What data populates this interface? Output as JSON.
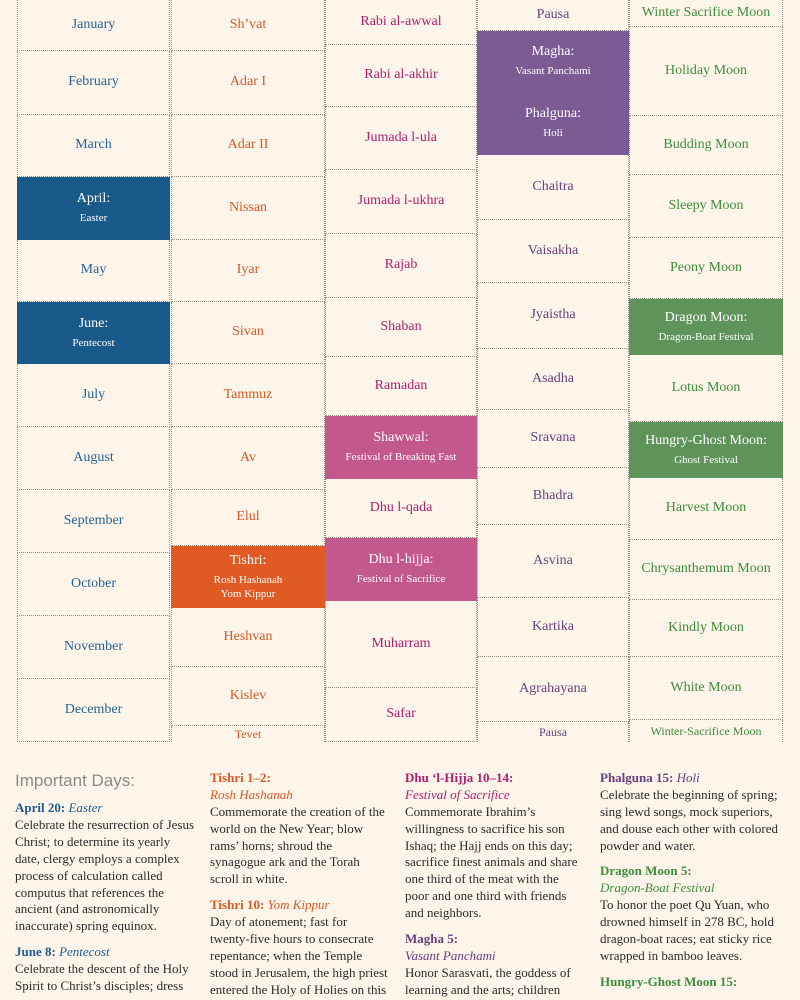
{
  "calendar": {
    "gregorian": {
      "color": "#2a6491",
      "cells": [
        {
          "label": "January",
          "sub": ""
        },
        {
          "label": "February",
          "sub": ""
        },
        {
          "label": "March",
          "sub": ""
        },
        {
          "label": "April:",
          "sub": "Easter",
          "highlight": "#1a5a8a"
        },
        {
          "label": "May",
          "sub": ""
        },
        {
          "label": "June:",
          "sub": "Pentecost",
          "highlight": "#1a5a8a"
        },
        {
          "label": "July",
          "sub": ""
        },
        {
          "label": "August",
          "sub": ""
        },
        {
          "label": "September",
          "sub": ""
        },
        {
          "label": "October",
          "sub": ""
        },
        {
          "label": "November",
          "sub": ""
        },
        {
          "label": "December",
          "sub": ""
        }
      ]
    },
    "hebrew": {
      "color": "#d25a27",
      "cells": [
        {
          "label": "Sh’vat",
          "sub": ""
        },
        {
          "label": "Adar I",
          "sub": ""
        },
        {
          "label": "Adar II",
          "sub": ""
        },
        {
          "label": "Nissan",
          "sub": ""
        },
        {
          "label": "Iyar",
          "sub": ""
        },
        {
          "label": "Sivan",
          "sub": ""
        },
        {
          "label": "Tammuz",
          "sub": ""
        },
        {
          "label": "Av",
          "sub": ""
        },
        {
          "label": "Elul",
          "sub": ""
        },
        {
          "label": "Tishri:",
          "sub": "Rosh Hashanah\nYom Kippur",
          "highlight": "#e05a24"
        },
        {
          "label": "Heshvan",
          "sub": ""
        },
        {
          "label": "Kislev",
          "sub": ""
        },
        {
          "label": "Tevet",
          "sub": ""
        }
      ]
    },
    "islamic": {
      "color": "#ad1f6e",
      "cells": [
        {
          "label": "Rabi al-awwal",
          "sub": ""
        },
        {
          "label": "Rabi al-akhir",
          "sub": ""
        },
        {
          "label": "Jumada l-ula",
          "sub": ""
        },
        {
          "label": "Jumada l-ukhra",
          "sub": ""
        },
        {
          "label": "Rajab",
          "sub": ""
        },
        {
          "label": "Shaban",
          "sub": ""
        },
        {
          "label": "Ramadan",
          "sub": ""
        },
        {
          "label": "Shawwal:",
          "sub": "Festival of Breaking Fast",
          "highlight": "#c3588c"
        },
        {
          "label": "Dhu l-qada",
          "sub": ""
        },
        {
          "label": "Dhu l-hijja:",
          "sub": "Festival of Sacrifice",
          "highlight": "#c3588c"
        },
        {
          "label": "Muharram",
          "sub": ""
        },
        {
          "label": "Safar",
          "sub": ""
        }
      ]
    },
    "hindu": {
      "color": "#6a3f7c",
      "cells": [
        {
          "label": "Pausa",
          "sub": ""
        },
        {
          "label": "Magha:",
          "sub": "Vasant Panchami",
          "highlight": "#7c5a94"
        },
        {
          "label": "Phalguna:",
          "sub": "Holi",
          "highlight": "#7c5a94"
        },
        {
          "label": "Chaitra",
          "sub": ""
        },
        {
          "label": "Vaisakha",
          "sub": ""
        },
        {
          "label": "Jyaistha",
          "sub": ""
        },
        {
          "label": "Asadha",
          "sub": ""
        },
        {
          "label": "Sravana",
          "sub": ""
        },
        {
          "label": "Bhadra",
          "sub": ""
        },
        {
          "label": "Asvina",
          "sub": ""
        },
        {
          "label": "Kartika",
          "sub": ""
        },
        {
          "label": "Agrahayana",
          "sub": ""
        },
        {
          "label": "Pausa",
          "sub": ""
        }
      ]
    },
    "chinese": {
      "color": "#3d8e3a",
      "cells": [
        {
          "label": "Winter Sacrifice Moon",
          "sub": ""
        },
        {
          "label": "Holiday Moon",
          "sub": ""
        },
        {
          "label": "Budding Moon",
          "sub": ""
        },
        {
          "label": "Sleepy Moon",
          "sub": ""
        },
        {
          "label": "Peony Moon",
          "sub": ""
        },
        {
          "label": "Dragon Moon:",
          "sub": "Dragon-Boat Festival",
          "highlight": "#5e9459"
        },
        {
          "label": "Lotus Moon",
          "sub": ""
        },
        {
          "label": "Hungry-Ghost Moon:",
          "sub": "Ghost Festival",
          "highlight": "#5e9459"
        },
        {
          "label": "Harvest Moon",
          "sub": ""
        },
        {
          "label": "Chrysanthemum Moon",
          "sub": ""
        },
        {
          "label": "Kindly Moon",
          "sub": ""
        },
        {
          "label": "White Moon",
          "sub": ""
        },
        {
          "label": "Winter-Sacrifice Moon",
          "sub": ""
        }
      ]
    }
  },
  "important": {
    "title": "Important Days:",
    "columns": [
      [
        {
          "key": "greg",
          "date": "April 20:",
          "name": "Easter",
          "desc": "Celebrate the resurrection of Jesus Christ; to determine its yearly date, clergy employs a complex process of calculation called computus that references the ancient (and astronomically inaccurate) spring equinox."
        },
        {
          "key": "greg",
          "date": "June 8:",
          "name": "Pentecost",
          "desc": "Celebrate the descent of the Holy Spirit to Christ’s disciples; dress"
        }
      ],
      [
        {
          "key": "heb",
          "date": "Tishri 1–2:",
          "name": "Rosh Hashanah",
          "desc": "Commemorate the creation of the world on the New Year; blow rams’ horns; shroud the synagogue ark and the Torah scroll in white."
        },
        {
          "key": "heb",
          "date": "Tishri 10:",
          "name": "Yom Kippur",
          "desc": "Day of atonement; fast for twenty-five hours to consecrate repentance; when the Temple stood in Jerusalem, the high priest entered the Holy of Holies on this day alone."
        }
      ],
      [
        {
          "key": "isl",
          "date": "Dhu ‘l-Hijja 10–14:",
          "name": "Festival of Sacrifice",
          "desc": "Commemorate Ibrahim’s willingness to sacrifice his son Ishaq; the Hajj ends on this day; sacrifice finest animals and share one third of the meat with the poor and one third with friends and neighbors."
        },
        {
          "key": "hin",
          "date": "Magha 5:",
          "name": "Vasant Panchami",
          "desc": "Honor Sarasvati, the goddess of learning and the arts; children about to begin their education"
        }
      ],
      [
        {
          "key": "hin",
          "date": "Phalguna 15:",
          "name": "Holi",
          "desc": "Celebrate the beginning of spring; sing lewd songs, mock superiors, and douse each other with colored powder and water."
        },
        {
          "key": "chi",
          "date": "Dragon Moon 5:",
          "name": "Dragon-Boat Festival",
          "desc": "To honor the poet Qu Yuan, who drowned himself in 278 BC, hold dragon-boat races; eat sticky rice wrapped in bamboo leaves."
        },
        {
          "key": "chi",
          "date": "Hungry-Ghost Moon 15:",
          "name": "",
          "desc": ""
        }
      ]
    ]
  }
}
